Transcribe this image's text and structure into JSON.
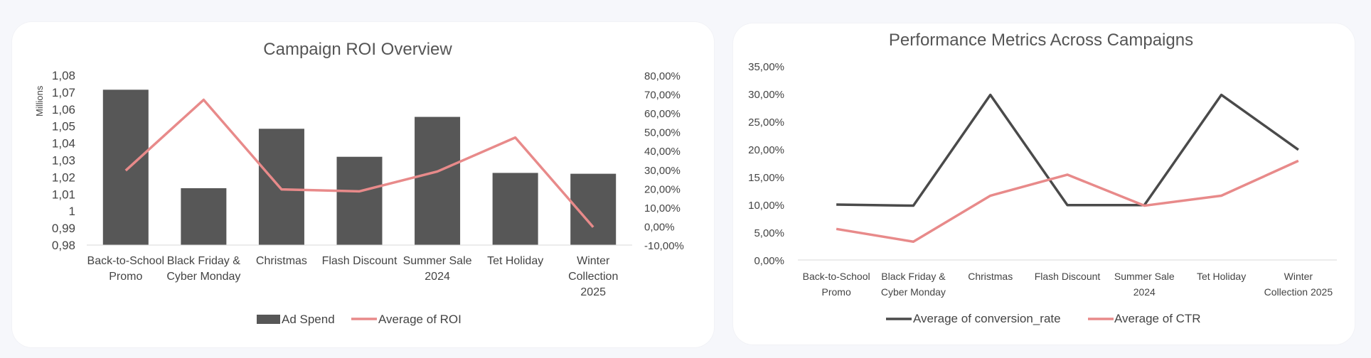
{
  "charts": [
    {
      "title": "Campaign ROI Overview",
      "type": "bar+line",
      "y_unit_label": "Millions",
      "categories": [
        [
          "Back-to-School",
          "Promo"
        ],
        [
          "Black Friday &",
          "Cyber Monday"
        ],
        [
          "Christmas"
        ],
        [
          "Flash Discount"
        ],
        [
          "Summer Sale",
          "2024"
        ],
        [
          "Tet Holiday"
        ],
        [
          "Winter",
          "Collection",
          "2025"
        ]
      ],
      "left_axis_ticks": [
        "0,98",
        "0,99",
        "1",
        "1,01",
        "1,02",
        "1,03",
        "1,04",
        "1,05",
        "1,06",
        "1,07",
        "1,08"
      ],
      "right_axis_ticks": [
        "-10,00%",
        "0,00%",
        "10,00%",
        "20,00%",
        "30,00%",
        "40,00%",
        "50,00%",
        "60,00%",
        "70,00%",
        "80,00%"
      ],
      "legend": [
        "Ad Spend",
        "Average of ROI"
      ]
    },
    {
      "title": "Performance Metrics Across Campaigns",
      "type": "line",
      "categories": [
        [
          "Back-to-School",
          "Promo"
        ],
        [
          "Black Friday &",
          "Cyber Monday"
        ],
        [
          "Christmas"
        ],
        [
          "Flash Discount"
        ],
        [
          "Summer Sale",
          "2024"
        ],
        [
          "Tet Holiday"
        ],
        [
          "Winter",
          "Collection 2025"
        ]
      ],
      "y_axis_ticks": [
        "0,00%",
        "5,00%",
        "10,00%",
        "15,00%",
        "20,00%",
        "25,00%",
        "30,00%",
        "35,00%"
      ],
      "legend": [
        "Average of conversion_rate",
        "Average of CTR"
      ]
    }
  ],
  "chart_data": [
    {
      "type": "bar",
      "title": "Campaign ROI Overview",
      "categories": [
        "Back-to-School Promo",
        "Black Friday & Cyber Monday",
        "Christmas",
        "Flash Discount",
        "Summer Sale 2024",
        "Tet Holiday",
        "Winter Collection 2025"
      ],
      "series": [
        {
          "name": "Ad Spend",
          "type": "bar",
          "axis": "left",
          "values": [
            1.0715,
            1.0135,
            1.0485,
            1.032,
            1.0555,
            1.0225,
            1.022
          ]
        },
        {
          "name": "Average of ROI",
          "type": "line",
          "axis": "right",
          "values": [
            29.5,
            67.0,
            19.5,
            18.5,
            29.0,
            47.0,
            -0.5
          ]
        }
      ],
      "ylim_left": [
        0.98,
        1.08
      ],
      "ylim_right": [
        -10,
        80
      ],
      "ylabel": "Millions",
      "legend_position": "bottom",
      "grid": false
    },
    {
      "type": "line",
      "title": "Performance Metrics Across Campaigns",
      "categories": [
        "Back-to-School Promo",
        "Black Friday & Cyber Monday",
        "Christmas",
        "Flash Discount",
        "Summer Sale 2024",
        "Tet Holiday",
        "Winter Collection 2025"
      ],
      "series": [
        {
          "name": "Average of conversion_rate",
          "values": [
            10.0,
            9.8,
            29.8,
            9.9,
            9.9,
            29.8,
            19.9
          ]
        },
        {
          "name": "Average of CTR",
          "values": [
            5.6,
            3.3,
            11.6,
            15.4,
            9.8,
            11.6,
            17.9
          ]
        }
      ],
      "ylim": [
        0,
        35
      ],
      "legend_position": "bottom",
      "grid": false
    }
  ],
  "colors": {
    "bar": "#575757",
    "line_roi": "#e88a8a",
    "line_conv": "#4a4a4a",
    "line_ctr": "#e88a8a",
    "axis": "#d9d9d9"
  }
}
